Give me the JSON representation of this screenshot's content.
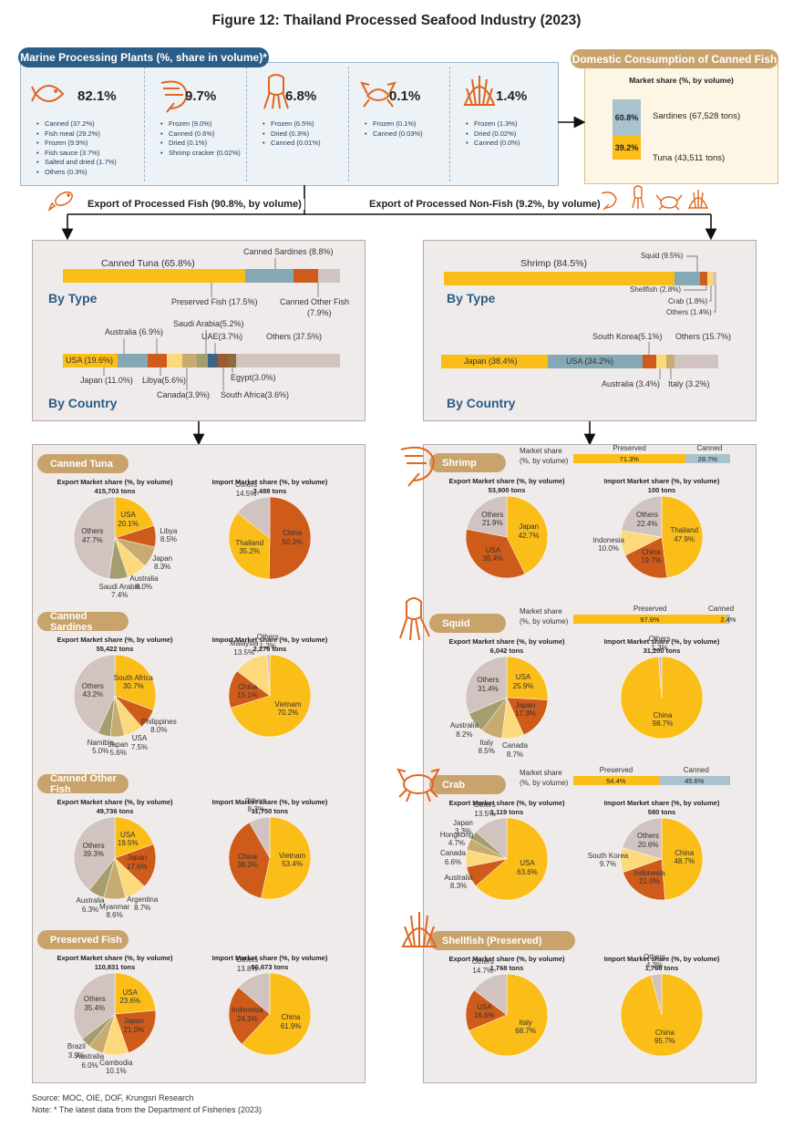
{
  "title": "Figure 12: Thailand Processed Seafood Industry (2023)",
  "plants": {
    "header": "Marine Processing Plants (%, share in volume)*",
    "groups": [
      {
        "icon": "fish-icon",
        "pct": "82.1%",
        "items": [
          "Canned (37.2%)",
          "Fish meal (29.2%)",
          "Frozen (9.9%)",
          "Fish sauce (3.7%)",
          "Salted and dried (1.7%)",
          "Others (0.3%)"
        ]
      },
      {
        "icon": "shrimp-icon",
        "pct": "9.7%",
        "items": [
          "Frozen (9.0%)",
          "Canned (0.6%)",
          "Dried (0.1%)",
          "Shrimp cracker (0.02%)"
        ]
      },
      {
        "icon": "squid-icon",
        "pct": "6.8%",
        "items": [
          "Frozen (6.5%)",
          "Dried (0.3%)",
          "Canned (0.01%)"
        ]
      },
      {
        "icon": "crab-icon",
        "pct": "0.1%",
        "items": [
          "Frozen (0.1%)",
          "Canned (0.03%)"
        ]
      },
      {
        "icon": "shell-icon",
        "pct": "1.4%",
        "items": [
          "Frozen (1.3%)",
          "Dried (0.02%)",
          "Canned (0.0%)"
        ]
      }
    ]
  },
  "domestic": {
    "header": "Domestic Consumption of Canned Fish",
    "subtitle": "Market share (%, by volume)",
    "sardines_pct": "60.8%",
    "sardines_label": "Sardines (67,528 tons)",
    "tuna_pct": "39.2%",
    "tuna_label": "Tuna  (43,511 tons)"
  },
  "export_fish_label": "Export of Processed Fish (90.8%, by volume)",
  "export_nonfish_label": "Export of Processed Non-Fish (9.2%, by volume)",
  "fish_panel": {
    "by_type": "By Type",
    "by_country": "By Country",
    "type_labels": {
      "tuna": "Canned Tuna (65.8%)",
      "sardines": "Canned Sardines (8.8%)",
      "preserved": "Preserved Fish (17.5%)",
      "other": "Canned Other Fish",
      "other2": "(7.9%)"
    },
    "country_labels": {
      "usa": "USA (19.6%)",
      "japan": "Japan (11.0%)",
      "australia": "Australia (6.9%)",
      "libya": "Libya(5.6%)",
      "saudi": "Saudi Arabia(5.2%)",
      "canada": "Canada(3.9%)",
      "uae": "UAE(3.7%)",
      "southafrica": "South Africa(3.6%)",
      "egypt": "Egypt(3.0%)",
      "others": "Others (37.5%)"
    }
  },
  "nonfish_panel": {
    "by_type": "By Type",
    "by_country": "By Country",
    "type_labels": {
      "shrimp": "Shrimp (84.5%)",
      "squid": "Squid (9.5%)",
      "shellfish": "Shellfish (2.8%)",
      "crab": "Crab (1.8%)",
      "others": "Others (1.4%)"
    },
    "country_labels": {
      "japan": "Japan (38.4%)",
      "usa": "USA (34.2%)",
      "korea": "South Korea(5.1%)",
      "others": "Others (15.7%)",
      "australia": "Australia (3.4%)",
      "italy": "Italy (3.2%)"
    }
  },
  "colors": {
    "gold": "#fbbd18",
    "blue": "#84a8b4",
    "orange": "#cf5b1b",
    "taupe": "#d1c3bf",
    "light": "#fcd97a",
    "olive": "#a59d6e",
    "khaki": "#c7ab70",
    "navy": "#2a5d87",
    "brown": "#9a5a32",
    "dblue": "#3c6582"
  },
  "chart_data": [
    {
      "type": "bar",
      "title": "Export of Processed Fish - By Type",
      "categories": [
        "Canned Tuna",
        "Preserved Fish",
        "Canned Sardines",
        "Canned Other Fish"
      ],
      "values": [
        65.8,
        17.5,
        8.8,
        7.9
      ]
    },
    {
      "type": "bar",
      "title": "Export of Processed Fish - By Country",
      "categories": [
        "USA",
        "Japan",
        "Australia",
        "Libya",
        "Saudi Arabia",
        "Canada",
        "UAE",
        "South Africa",
        "Egypt",
        "Others"
      ],
      "values": [
        19.6,
        11.0,
        6.9,
        5.6,
        5.2,
        3.9,
        3.7,
        3.6,
        3.0,
        37.5
      ]
    },
    {
      "type": "bar",
      "title": "Export of Processed Non-Fish - By Type",
      "categories": [
        "Shrimp",
        "Squid",
        "Shellfish",
        "Crab",
        "Others"
      ],
      "values": [
        84.5,
        9.5,
        2.8,
        1.8,
        1.4
      ]
    },
    {
      "type": "bar",
      "title": "Export of Processed Non-Fish - By Country",
      "categories": [
        "Japan",
        "USA",
        "South Korea",
        "Australia",
        "Italy",
        "Others"
      ],
      "values": [
        38.4,
        34.2,
        5.1,
        3.4,
        3.2,
        15.7
      ]
    },
    {
      "type": "bar",
      "title": "Domestic Consumption of Canned Fish",
      "categories": [
        "Sardines",
        "Tuna"
      ],
      "values": [
        60.8,
        39.2
      ]
    }
  ],
  "sections_left": [
    {
      "name": "Canned Tuna",
      "export": {
        "head": "Export Market share (%, by volume)",
        "tons": "415,703 tons",
        "slices": [
          {
            "label": "USA",
            "v": 20.1,
            "c": "gold"
          },
          {
            "label": "Libya",
            "v": 8.5,
            "c": "orange"
          },
          {
            "label": "Japan",
            "v": 8.3,
            "c": "khaki"
          },
          {
            "label": "Australia",
            "v": 8.0,
            "c": "light"
          },
          {
            "label": "Saudi Arabia",
            "v": 7.4,
            "c": "olive"
          },
          {
            "label": "Others",
            "v": 47.7,
            "c": "taupe"
          }
        ]
      },
      "import": {
        "head": "Import Market share (%, by volume)",
        "tons": "3,488 tons",
        "slices": [
          {
            "label": "China",
            "v": 50.3,
            "c": "orange"
          },
          {
            "label": "Thailand",
            "v": 35.2,
            "c": "gold"
          },
          {
            "label": "Others",
            "v": 14.5,
            "c": "taupe"
          }
        ]
      }
    },
    {
      "name": "Canned Sardines",
      "export": {
        "head": "Export Market share (%, by volume)",
        "tons": "55,422 tons",
        "slices": [
          {
            "label": "South Africa",
            "v": 30.7,
            "c": "gold"
          },
          {
            "label": "Philippines",
            "v": 8.0,
            "c": "orange"
          },
          {
            "label": "USA",
            "v": 7.5,
            "c": "light"
          },
          {
            "label": "Japan",
            "v": 5.6,
            "c": "khaki"
          },
          {
            "label": "Namibia",
            "v": 5.0,
            "c": "olive"
          },
          {
            "label": "Others",
            "v": 43.2,
            "c": "taupe"
          }
        ]
      },
      "import": {
        "head": "Import Market share (%, by volume)",
        "tons": "2,276 tons",
        "slices": [
          {
            "label": "Vietnam",
            "v": 70.2,
            "c": "gold"
          },
          {
            "label": "China",
            "v": 15.1,
            "c": "orange"
          },
          {
            "label": "Malaysia",
            "v": 13.5,
            "c": "light"
          },
          {
            "label": "Others",
            "v": 1.2,
            "c": "taupe"
          }
        ]
      }
    },
    {
      "name": "Canned Other Fish",
      "export": {
        "head": "Export Market share (%, by volume)",
        "tons": "49,736 tons",
        "slices": [
          {
            "label": "USA",
            "v": 19.5,
            "c": "gold"
          },
          {
            "label": "Japan",
            "v": 17.6,
            "c": "orange"
          },
          {
            "label": "Argentina",
            "v": 8.7,
            "c": "light"
          },
          {
            "label": "Myanmar",
            "v": 8.6,
            "c": "khaki"
          },
          {
            "label": "Australia",
            "v": 6.3,
            "c": "olive"
          },
          {
            "label": "Others",
            "v": 39.3,
            "c": "taupe"
          }
        ]
      },
      "import": {
        "head": "Import Market share (%, by volume)",
        "tons": "11,750 tons",
        "slices": [
          {
            "label": "Vietnam",
            "v": 53.4,
            "c": "gold"
          },
          {
            "label": "China",
            "v": 38.3,
            "c": "orange"
          },
          {
            "label": "Others",
            "v": 8.3,
            "c": "taupe"
          }
        ]
      }
    },
    {
      "name": "Preserved Fish",
      "export": {
        "head": "Export Market share (%, by volume)",
        "tons": "110,831 tons",
        "slices": [
          {
            "label": "USA",
            "v": 23.6,
            "c": "gold"
          },
          {
            "label": "Japan",
            "v": 21.0,
            "c": "orange"
          },
          {
            "label": "Cambodia",
            "v": 10.1,
            "c": "light"
          },
          {
            "label": "Australia",
            "v": 6.0,
            "c": "khaki"
          },
          {
            "label": "Brazil",
            "v": 3.9,
            "c": "olive"
          },
          {
            "label": "Others",
            "v": 35.4,
            "c": "taupe"
          }
        ]
      },
      "import": {
        "head": "Import Market share (%, by volume)",
        "tons": "56,673 tons",
        "slices": [
          {
            "label": "China",
            "v": 61.9,
            "c": "gold"
          },
          {
            "label": "Indonesia",
            "v": 24.3,
            "c": "orange"
          },
          {
            "label": "Others",
            "v": 13.8,
            "c": "taupe"
          }
        ]
      }
    }
  ],
  "sections_right": [
    {
      "name": "Shrimp",
      "ms_label": "Market share\n(%, by volume)",
      "preserved": 71.3,
      "canned": 28.7,
      "export": {
        "head": "Export Market share (%, by volume)",
        "tons": "53,900 tons",
        "slices": [
          {
            "label": "Japan",
            "v": 42.7,
            "c": "gold"
          },
          {
            "label": "USA",
            "v": 35.4,
            "c": "orange"
          },
          {
            "label": "Others",
            "v": 21.9,
            "c": "taupe"
          }
        ]
      },
      "import": {
        "head": "Import Market share (%, by volume)",
        "tons": "100 tons",
        "slices": [
          {
            "label": "Thailand",
            "v": 47.9,
            "c": "gold"
          },
          {
            "label": "China",
            "v": 19.7,
            "c": "orange"
          },
          {
            "label": "Indonesia",
            "v": 10.0,
            "c": "light"
          },
          {
            "label": "Others",
            "v": 22.4,
            "c": "taupe"
          }
        ]
      }
    },
    {
      "name": "Squid",
      "preserved": 97.6,
      "canned": 2.4,
      "export": {
        "head": "Export Market share (%, by volume)",
        "tons": "6,042 tons",
        "slices": [
          {
            "label": "USA",
            "v": 25.9,
            "c": "gold"
          },
          {
            "label": "Japan",
            "v": 17.3,
            "c": "orange"
          },
          {
            "label": "Canada",
            "v": 8.7,
            "c": "light"
          },
          {
            "label": "Italy",
            "v": 8.5,
            "c": "khaki"
          },
          {
            "label": "Australia",
            "v": 8.2,
            "c": "olive"
          },
          {
            "label": "Others",
            "v": 31.4,
            "c": "taupe"
          }
        ]
      },
      "import": {
        "head": "Import Market share (%, by volume)",
        "tons": "31,200 tons",
        "slices": [
          {
            "label": "China",
            "v": 98.7,
            "c": "gold"
          },
          {
            "label": "Others",
            "v": 1.3,
            "c": "taupe"
          }
        ]
      }
    },
    {
      "name": "Crab",
      "preserved": 54.4,
      "canned": 45.6,
      "export": {
        "head": "Export Market share (%, by volume)",
        "tons": "1,119 tons",
        "slices": [
          {
            "label": "USA",
            "v": 63.6,
            "c": "gold"
          },
          {
            "label": "Australia",
            "v": 8.3,
            "c": "orange"
          },
          {
            "label": "Canada",
            "v": 6.6,
            "c": "light"
          },
          {
            "label": "Hongkong",
            "v": 4.7,
            "c": "khaki"
          },
          {
            "label": "Japan",
            "v": 3.3,
            "c": "olive"
          },
          {
            "label": "Others",
            "v": 13.5,
            "c": "taupe"
          }
        ]
      },
      "import": {
        "head": "Import Market share (%, by volume)",
        "tons": "580 tons",
        "slices": [
          {
            "label": "China",
            "v": 48.7,
            "c": "gold"
          },
          {
            "label": "Indonesia",
            "v": 21.0,
            "c": "orange"
          },
          {
            "label": "South Korea",
            "v": 9.7,
            "c": "light"
          },
          {
            "label": "Others",
            "v": 20.6,
            "c": "taupe"
          }
        ]
      }
    },
    {
      "name": "Shellfish (Preserved)",
      "export": {
        "head": "Export Market share (%, by volume)",
        "tons": "1,768 tons",
        "slices": [
          {
            "label": "Italy",
            "v": 68.7,
            "c": "gold"
          },
          {
            "label": "USA",
            "v": 16.6,
            "c": "orange"
          },
          {
            "label": "Others",
            "v": 14.7,
            "c": "taupe"
          }
        ]
      },
      "import": {
        "head": "Import Market share (%, by volume)",
        "tons": "1,766 tons",
        "slices": [
          {
            "label": "China",
            "v": 95.7,
            "c": "gold"
          },
          {
            "label": "Others",
            "v": 4.3,
            "c": "taupe"
          }
        ]
      }
    }
  ],
  "ms_words": {
    "label1": "Market share",
    "label2": "(%, by volume)",
    "preserved": "Preserved",
    "canned": "Canned"
  },
  "footer": {
    "source": "Source: MOC, OIE, DOF, Krungsri Research",
    "note": "Note: * The latest data from the Department of Fisheries (2023)"
  }
}
